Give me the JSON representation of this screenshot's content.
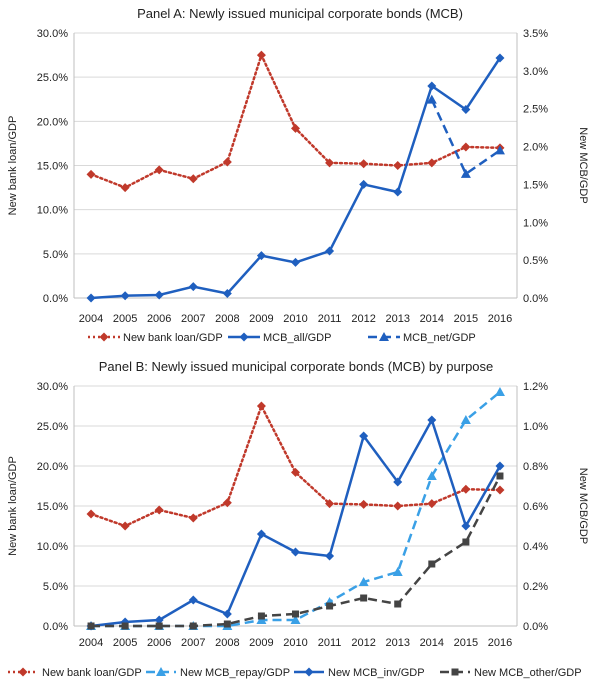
{
  "chart_data": [
    {
      "type": "line",
      "title": "Panel A: Newly issued municipal corporate bonds (MCB)",
      "x": [
        "2004",
        "2005",
        "2006",
        "2007",
        "2008",
        "2009",
        "2010",
        "2011",
        "2012",
        "2013",
        "2014",
        "2015",
        "2016"
      ],
      "y_left_label": "New bank loan/GDP",
      "y_right_label": "New MCB/GDP",
      "y_left_ticks": [
        "0.0%",
        "5.0%",
        "10.0%",
        "15.0%",
        "20.0%",
        "25.0%",
        "30.0%"
      ],
      "y_right_ticks": [
        "0.0%",
        "0.5%",
        "1.0%",
        "1.5%",
        "2.0%",
        "2.5%",
        "3.0%",
        "3.5%"
      ],
      "y_left_range": [
        0,
        30
      ],
      "y_right_range": [
        0,
        3.5
      ],
      "grid": true,
      "legend_position": "bottom",
      "series": [
        {
          "name": "New bank loan/GDP",
          "axis": "left",
          "style": "dotted",
          "marker": "diamond",
          "color": "#c0392b",
          "values": [
            14.0,
            12.5,
            14.5,
            13.5,
            15.4,
            27.5,
            19.2,
            15.3,
            15.2,
            15.0,
            15.3,
            17.1,
            17.0
          ]
        },
        {
          "name": "MCB_all/GDP",
          "axis": "right",
          "style": "solid",
          "marker": "diamond",
          "color": "#1f5fbf",
          "values": [
            0.0,
            0.03,
            0.04,
            0.15,
            0.06,
            0.56,
            0.47,
            0.62,
            1.5,
            1.4,
            2.8,
            2.49,
            3.17
          ]
        },
        {
          "name": "MCB_net/GDP",
          "axis": "right",
          "style": "dashed",
          "marker": "triangle",
          "color": "#1f5fbf",
          "values": [
            null,
            null,
            null,
            null,
            null,
            null,
            null,
            null,
            null,
            null,
            2.62,
            1.64,
            1.95
          ]
        }
      ]
    },
    {
      "type": "line",
      "title": "Panel B: Newly issued municipal corporate bonds (MCB)  by purpose",
      "x": [
        "2004",
        "2005",
        "2006",
        "2007",
        "2008",
        "2009",
        "2010",
        "2011",
        "2012",
        "2013",
        "2014",
        "2015",
        "2016"
      ],
      "y_left_label": "New bank loan/GDP",
      "y_right_label": "New MCB/GDP",
      "y_left_ticks": [
        "0.0%",
        "5.0%",
        "10.0%",
        "15.0%",
        "20.0%",
        "25.0%",
        "30.0%"
      ],
      "y_right_ticks": [
        "0.0%",
        "0.2%",
        "0.4%",
        "0.6%",
        "0.8%",
        "1.0%",
        "1.2%"
      ],
      "y_left_range": [
        0,
        30
      ],
      "y_right_range": [
        0,
        1.2
      ],
      "grid": true,
      "legend_position": "bottom",
      "series": [
        {
          "name": "New bank loan/GDP",
          "axis": "left",
          "style": "dotted",
          "marker": "diamond",
          "color": "#c0392b",
          "values": [
            14.0,
            12.5,
            14.5,
            13.5,
            15.4,
            27.5,
            19.2,
            15.3,
            15.2,
            15.0,
            15.3,
            17.1,
            17.0
          ]
        },
        {
          "name": "New MCB_repay/GDP",
          "axis": "right",
          "style": "dashed",
          "marker": "triangle",
          "color": "#3aa0e6",
          "values": [
            0.0,
            0.0,
            0.0,
            0.0,
            0.0,
            0.03,
            0.03,
            0.12,
            0.22,
            0.27,
            0.75,
            1.03,
            1.17
          ]
        },
        {
          "name": "New MCB_inv/GDP",
          "axis": "right",
          "style": "solid",
          "marker": "diamond",
          "color": "#1f5fbf",
          "values": [
            0.0,
            0.02,
            0.03,
            0.13,
            0.06,
            0.46,
            0.37,
            0.35,
            0.95,
            0.72,
            1.03,
            0.5,
            0.8
          ]
        },
        {
          "name": "New MCB_other/GDP",
          "axis": "right",
          "style": "dashed",
          "marker": "square",
          "color": "#444444",
          "values": [
            0.0,
            0.0,
            0.0,
            0.0,
            0.01,
            0.05,
            0.06,
            0.1,
            0.14,
            0.11,
            0.31,
            0.42,
            0.75
          ]
        }
      ]
    }
  ]
}
